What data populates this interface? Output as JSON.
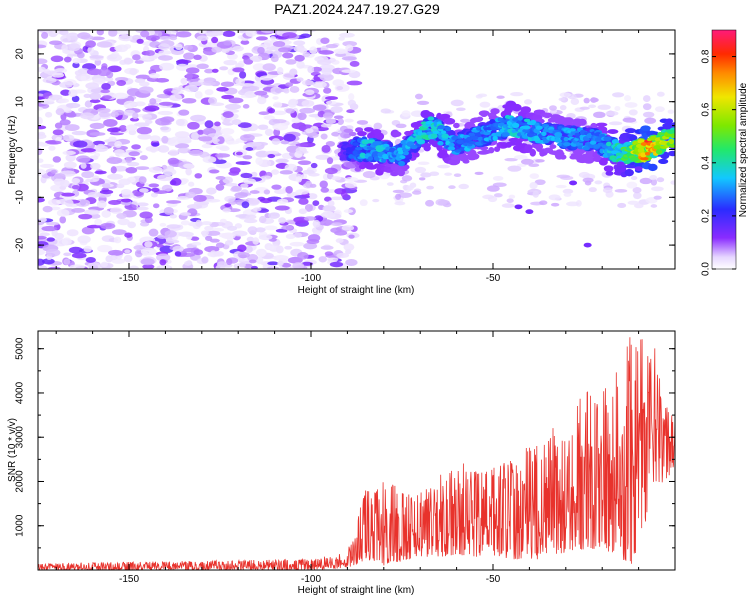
{
  "figure": {
    "title": "PAZ1.2024.247.19.27.G29"
  },
  "chart_data": [
    {
      "type": "heatmap",
      "xlabel": "Height of straight line (km)",
      "ylabel": "Frequency (Hz)",
      "xlim": [
        -175,
        0
      ],
      "ylim": [
        -25,
        25
      ],
      "xticks": [
        -150,
        -100,
        -50
      ],
      "yticks": [
        -20,
        -10,
        0,
        10,
        20
      ],
      "colorbar": {
        "label": "Normalized spectral amplitude",
        "range": [
          0,
          0.9
        ],
        "ticks": [
          0.0,
          0.2,
          0.4,
          0.6,
          0.8
        ],
        "tick_labels": [
          "0.0",
          "0.2",
          "0.4",
          "0.6",
          "0.8"
        ],
        "colormap": "rainbow (white → purple → blue → cyan → green → yellow → orange → red → magenta)"
      },
      "description_regions": {
        "noise_region_x": [
          -175,
          -90
        ],
        "noise_amplitude": [
          0.0,
          0.15
        ],
        "signal_band": [
          {
            "x": -90,
            "freq": 0,
            "amp": 0.2
          },
          {
            "x": -85,
            "freq": 0,
            "amp": 0.35
          },
          {
            "x": -75,
            "freq": -1,
            "amp": 0.3
          },
          {
            "x": -67,
            "freq": 5,
            "amp": 0.38
          },
          {
            "x": -60,
            "freq": 1,
            "amp": 0.3
          },
          {
            "x": -50,
            "freq": 4,
            "amp": 0.3
          },
          {
            "x": -45,
            "freq": 5,
            "amp": 0.35
          },
          {
            "x": -35,
            "freq": 3,
            "amp": 0.3
          },
          {
            "x": -22,
            "freq": 2,
            "amp": 0.3
          },
          {
            "x": -15,
            "freq": -1,
            "amp": 0.4
          },
          {
            "x": -8,
            "freq": 0,
            "amp": 0.75
          },
          {
            "x": -2,
            "freq": 2,
            "amp": 0.55
          }
        ]
      },
      "grid": false
    },
    {
      "type": "line",
      "xlabel": "Height of straight line (km)",
      "ylabel": "SNR (10 * v/v)",
      "xlim": [
        -175,
        0
      ],
      "ylim": [
        0,
        5400
      ],
      "xticks": [
        -150,
        -100,
        -50
      ],
      "yticks": [
        1000,
        2000,
        3000,
        4000,
        5000
      ],
      "color": "#e8322c",
      "envelope": [
        {
          "x": -175,
          "low": 0,
          "high": 150
        },
        {
          "x": -100,
          "low": 0,
          "high": 250
        },
        {
          "x": -90,
          "low": 50,
          "high": 400
        },
        {
          "x": -85,
          "low": 200,
          "high": 1900
        },
        {
          "x": -80,
          "low": 100,
          "high": 2000
        },
        {
          "x": -70,
          "low": 300,
          "high": 1800
        },
        {
          "x": -60,
          "low": 300,
          "high": 2500
        },
        {
          "x": -50,
          "low": 300,
          "high": 2300
        },
        {
          "x": -40,
          "low": 200,
          "high": 2800
        },
        {
          "x": -30,
          "low": 400,
          "high": 3500
        },
        {
          "x": -20,
          "low": 500,
          "high": 4500
        },
        {
          "x": -12,
          "low": 100,
          "high": 5400
        },
        {
          "x": -5,
          "low": 1800,
          "high": 5000
        },
        {
          "x": 0,
          "low": 2300,
          "high": 4000
        }
      ],
      "grid": false
    }
  ]
}
